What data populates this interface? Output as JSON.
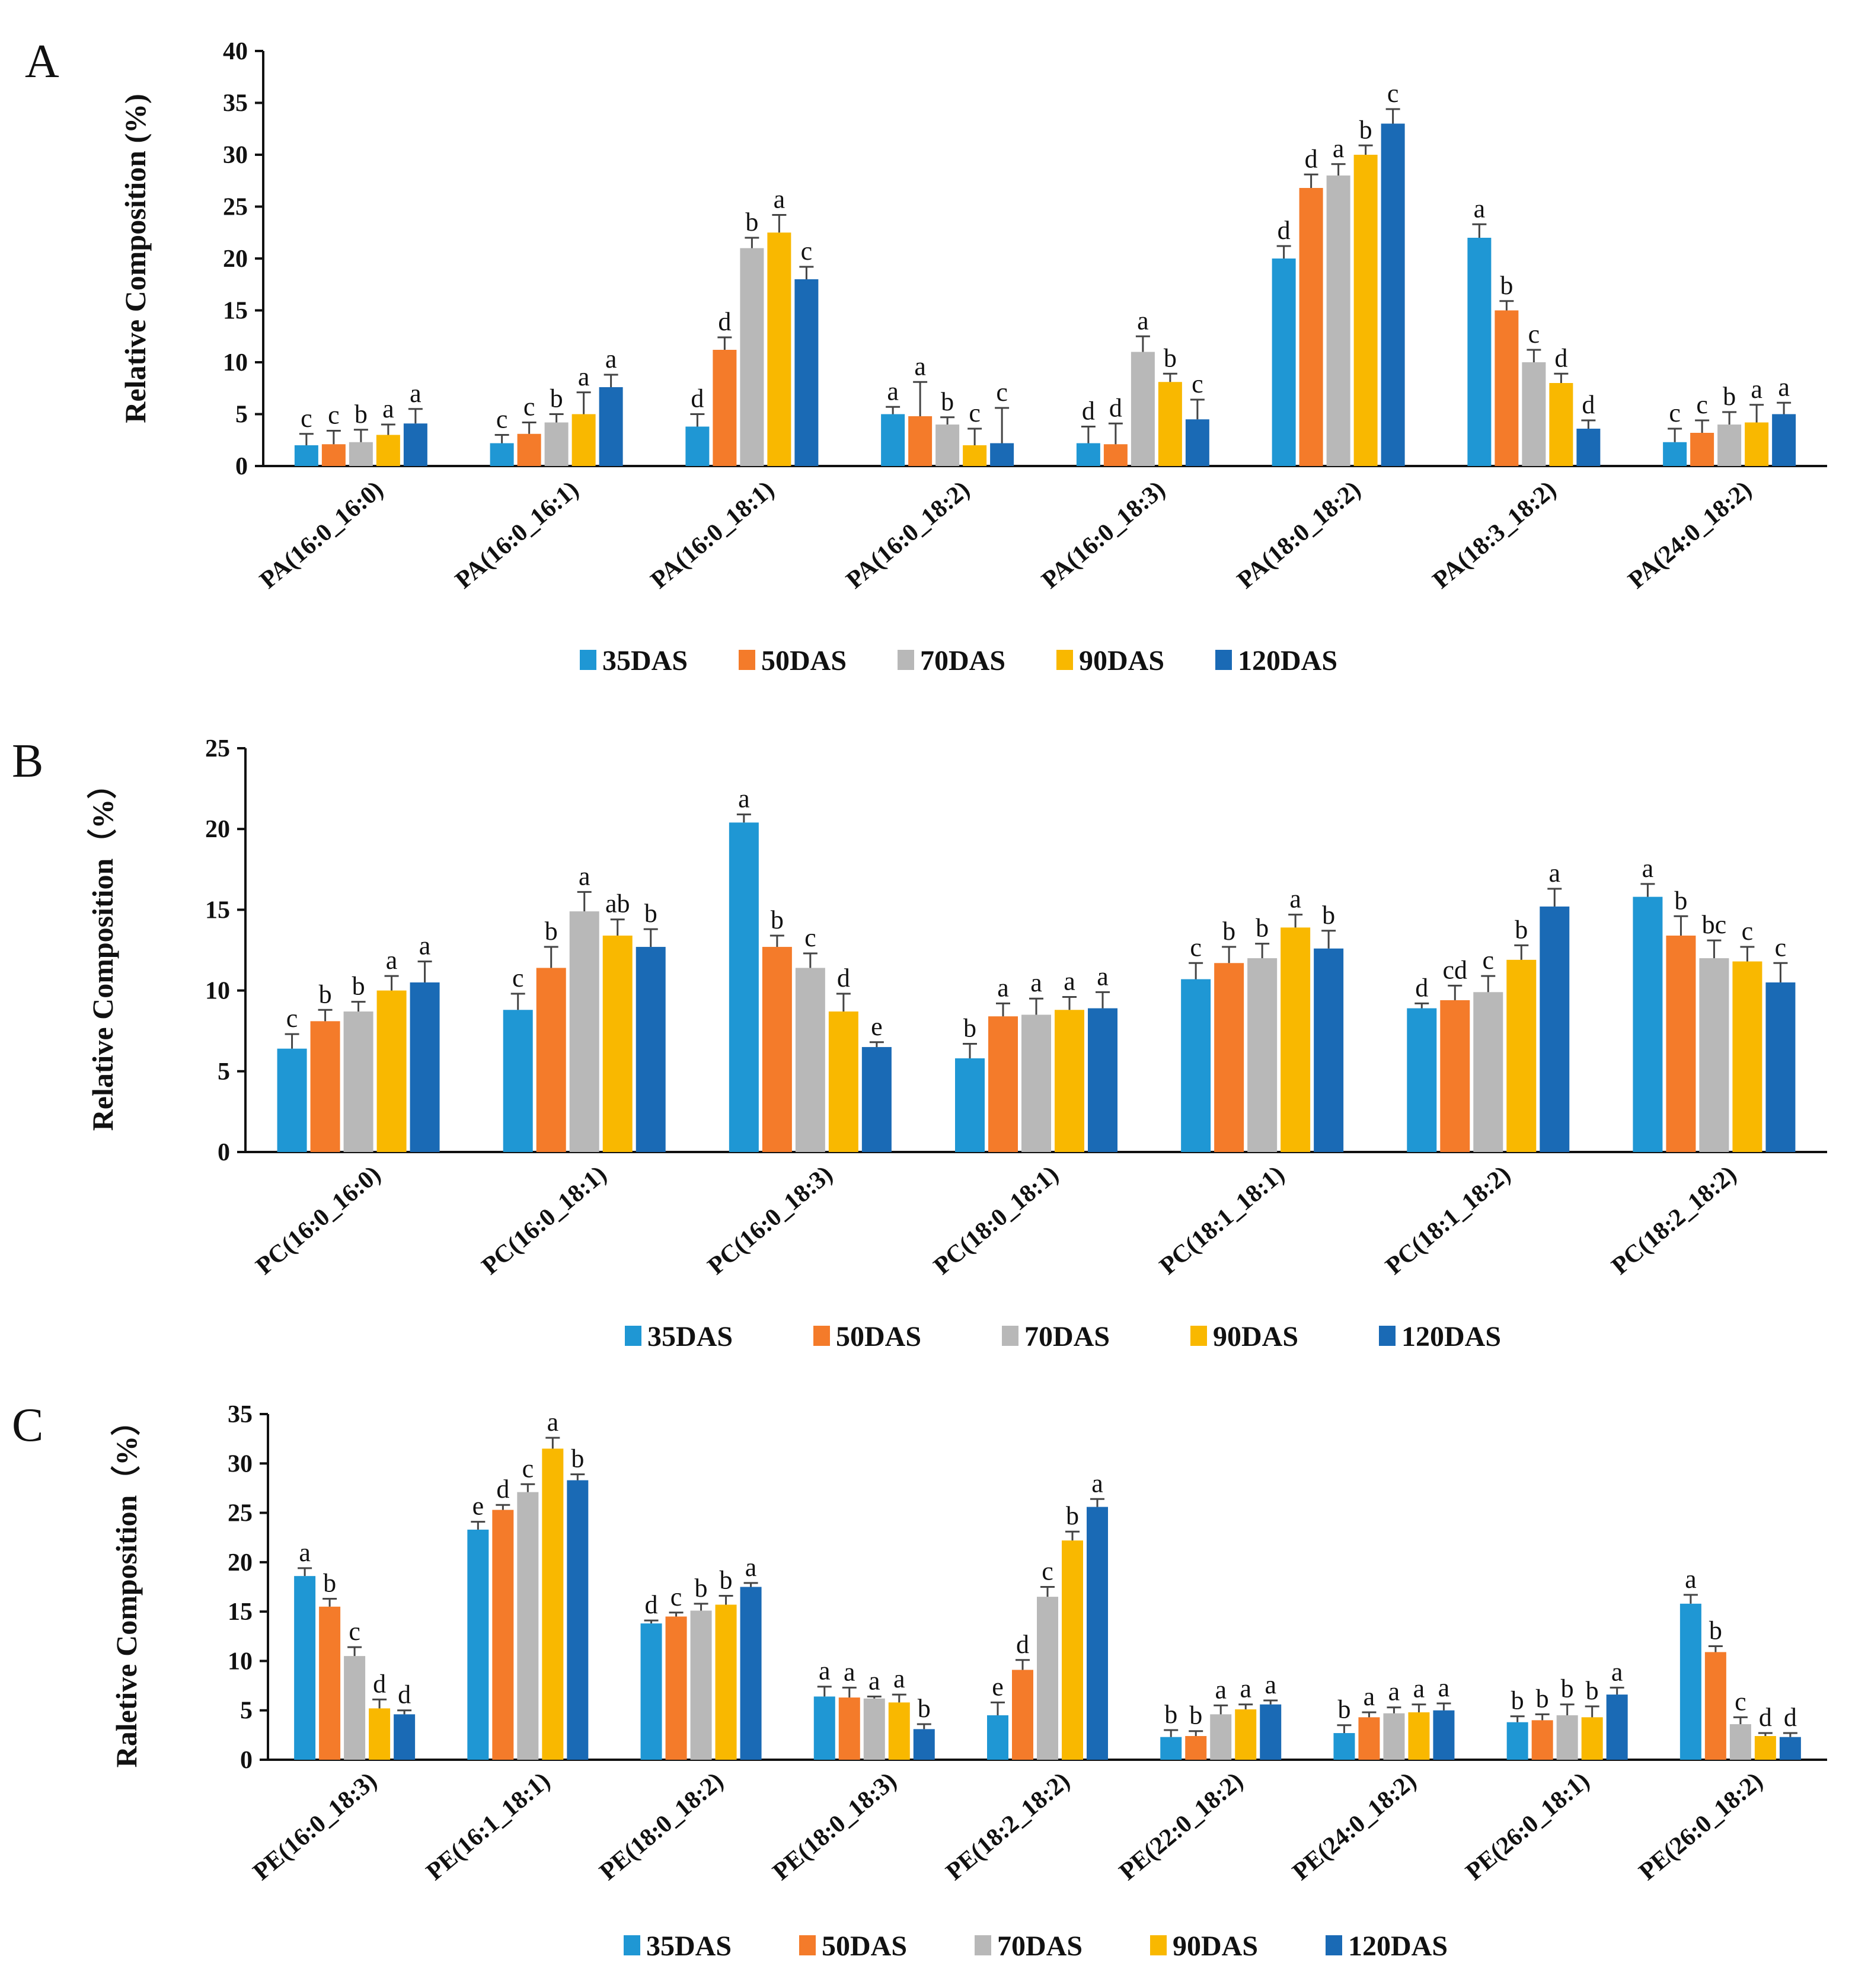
{
  "series_names": [
    "35DAS",
    "50DAS",
    "70DAS",
    "90DAS",
    "120DAS"
  ],
  "colors": [
    "#1f97d4",
    "#f47b2a",
    "#b8b8b8",
    "#f9b800",
    "#1a6ab5"
  ],
  "chart_data": [
    {
      "type": "bar",
      "panel": "A",
      "ylabel": "Relative  Composition (%)",
      "ylim": [
        0,
        40
      ],
      "yticks": [
        0,
        5,
        10,
        15,
        20,
        25,
        30,
        35,
        40
      ],
      "categories": [
        "PA(16:0_16:0)",
        "PA(16:0_16:1)",
        "PA(16:0_18:1)",
        "PA(16:0_18:2)",
        "PA(16:0_18:3)",
        "PA(18:0_18:2)",
        "PA(18:3_18:2)",
        "PA(24:0_18:2)"
      ],
      "series": [
        {
          "name": "35DAS",
          "values": [
            2.0,
            2.2,
            3.8,
            5.0,
            2.2,
            20.0,
            22.0,
            2.3
          ],
          "errors": [
            1.1,
            0.8,
            1.2,
            0.7,
            1.6,
            1.2,
            1.3,
            1.3
          ],
          "letters": [
            "c",
            "c",
            "d",
            "a",
            "d",
            "d",
            "a",
            "c"
          ]
        },
        {
          "name": "50DAS",
          "values": [
            2.1,
            3.1,
            11.2,
            4.8,
            2.1,
            26.8,
            15.0,
            3.2
          ],
          "errors": [
            1.3,
            1.1,
            1.2,
            3.3,
            2.0,
            1.3,
            0.9,
            1.2
          ],
          "letters": [
            "c",
            "c",
            "d",
            "a",
            "d",
            "d",
            "b",
            "c"
          ]
        },
        {
          "name": "70DAS",
          "values": [
            2.3,
            4.2,
            21.0,
            4.0,
            11.0,
            28.0,
            10.0,
            4.0
          ],
          "errors": [
            1.2,
            0.8,
            1.0,
            0.7,
            1.5,
            1.1,
            1.2,
            1.2
          ],
          "letters": [
            "b",
            "b",
            "b",
            "b",
            "a",
            "a",
            "c",
            "b"
          ]
        },
        {
          "name": "90DAS",
          "values": [
            3.0,
            5.0,
            22.5,
            2.0,
            8.1,
            30.0,
            8.0,
            4.2
          ],
          "errors": [
            1.0,
            2.1,
            1.7,
            1.6,
            0.8,
            0.9,
            0.9,
            1.7
          ],
          "letters": [
            "a",
            "a",
            "a",
            "c",
            "b",
            "b",
            "d",
            "a"
          ]
        },
        {
          "name": "120DAS",
          "values": [
            4.1,
            7.6,
            18.0,
            2.2,
            4.5,
            33.0,
            3.6,
            5.0
          ],
          "errors": [
            1.4,
            1.2,
            1.2,
            3.4,
            1.9,
            1.4,
            0.8,
            1.1
          ],
          "letters": [
            "a",
            "a",
            "c",
            "c",
            "c",
            "c",
            "d",
            "a"
          ]
        }
      ]
    },
    {
      "type": "bar",
      "panel": "B",
      "ylabel": "Relative  Composition（%）",
      "ylim": [
        0,
        25
      ],
      "yticks": [
        0,
        5,
        10,
        15,
        20,
        25
      ],
      "categories": [
        "PC(16:0_16:0)",
        "PC(16:0_18:1)",
        "PC(16:0_18:3)",
        "PC(18:0_18:1)",
        "PC(18:1_18:1)",
        "PC(18:1_18:2)",
        "PC(18:2_18:2)"
      ],
      "series": [
        {
          "name": "35DAS",
          "values": [
            6.4,
            8.8,
            20.4,
            5.8,
            10.7,
            8.9,
            15.8
          ],
          "errors": [
            0.9,
            1.0,
            0.5,
            0.9,
            1.0,
            0.3,
            0.8
          ],
          "letters": [
            "c",
            "c",
            "a",
            "b",
            "c",
            "d",
            "a"
          ]
        },
        {
          "name": "50DAS",
          "values": [
            8.1,
            11.4,
            12.7,
            8.4,
            11.7,
            9.4,
            13.4
          ],
          "errors": [
            0.7,
            1.3,
            0.7,
            0.8,
            1.0,
            0.9,
            1.2
          ],
          "letters": [
            "b",
            "b",
            "b",
            "a",
            "b",
            "cd",
            "b"
          ]
        },
        {
          "name": "70DAS",
          "values": [
            8.7,
            14.9,
            11.4,
            8.5,
            12.0,
            9.9,
            12.0
          ],
          "errors": [
            0.6,
            1.2,
            0.9,
            1.0,
            0.9,
            1.0,
            1.1
          ],
          "letters": [
            "b",
            "a",
            "c",
            "a",
            "b",
            "c",
            "bc"
          ]
        },
        {
          "name": "90DAS",
          "values": [
            10.0,
            13.4,
            8.7,
            8.8,
            13.9,
            11.9,
            11.8
          ],
          "errors": [
            0.9,
            1.0,
            1.1,
            0.8,
            0.8,
            0.9,
            0.9
          ],
          "letters": [
            "a",
            "ab",
            "d",
            "a",
            "a",
            "b",
            "c"
          ]
        },
        {
          "name": "120DAS",
          "values": [
            10.5,
            12.7,
            6.5,
            8.9,
            12.6,
            15.2,
            10.5
          ],
          "errors": [
            1.3,
            1.1,
            0.3,
            1.0,
            1.1,
            1.1,
            1.2
          ],
          "letters": [
            "a",
            "b",
            "e",
            "a",
            "b",
            "a",
            "c"
          ]
        }
      ]
    },
    {
      "type": "bar",
      "panel": "C",
      "ylabel": "Raletive Composition（%）",
      "ylim": [
        0,
        35
      ],
      "yticks": [
        0,
        5,
        10,
        15,
        20,
        25,
        30,
        35
      ],
      "categories": [
        "PE(16:0_18:3)",
        "PE(16:1_18:1)",
        "PE(18:0_18:2)",
        "PE(18:0_18:3)",
        "PE(18:2_18:2)",
        "PE(22:0_18:2)",
        "PE(24:0_18:2)",
        "PE(26:0_18:1)",
        "PE(26:0_18:2)"
      ],
      "series": [
        {
          "name": "35DAS",
          "values": [
            18.6,
            23.3,
            13.8,
            6.4,
            4.5,
            2.3,
            2.7,
            3.8,
            15.8
          ],
          "errors": [
            0.8,
            0.8,
            0.3,
            1.0,
            1.3,
            0.7,
            0.8,
            0.6,
            0.9
          ],
          "letters": [
            "a",
            "e",
            "d",
            "a",
            "e",
            "b",
            "b",
            "b",
            "a"
          ]
        },
        {
          "name": "50DAS",
          "values": [
            15.5,
            25.3,
            14.5,
            6.3,
            9.1,
            2.4,
            4.3,
            4.0,
            10.9
          ],
          "errors": [
            0.8,
            0.5,
            0.4,
            1.0,
            1.0,
            0.5,
            0.5,
            0.6,
            0.6
          ],
          "letters": [
            "b",
            "d",
            "c",
            "a",
            "d",
            "b",
            "a",
            "b",
            "b"
          ]
        },
        {
          "name": "70DAS",
          "values": [
            10.5,
            27.1,
            15.1,
            6.2,
            16.5,
            4.6,
            4.7,
            4.5,
            3.6
          ],
          "errors": [
            0.9,
            0.8,
            0.7,
            0.2,
            1.0,
            0.9,
            0.6,
            1.1,
            0.7
          ],
          "letters": [
            "c",
            "c",
            "b",
            "a",
            "c",
            "a",
            "a",
            "b",
            "c"
          ]
        },
        {
          "name": "90DAS",
          "values": [
            5.2,
            31.5,
            15.7,
            5.8,
            22.2,
            5.1,
            4.8,
            4.3,
            2.4
          ],
          "errors": [
            0.9,
            1.1,
            0.9,
            0.8,
            0.9,
            0.5,
            0.8,
            1.1,
            0.3
          ],
          "letters": [
            "d",
            "a",
            "b",
            "a",
            "b",
            "a",
            "a",
            "b",
            "d"
          ]
        },
        {
          "name": "120DAS",
          "values": [
            4.6,
            28.3,
            17.5,
            3.1,
            25.6,
            5.6,
            5.0,
            6.6,
            2.3
          ],
          "errors": [
            0.4,
            0.6,
            0.4,
            0.5,
            0.8,
            0.4,
            0.7,
            0.7,
            0.4
          ],
          "letters": [
            "d",
            "b",
            "a",
            "b",
            "a",
            "a",
            "a",
            "a",
            "d"
          ]
        }
      ]
    }
  ]
}
